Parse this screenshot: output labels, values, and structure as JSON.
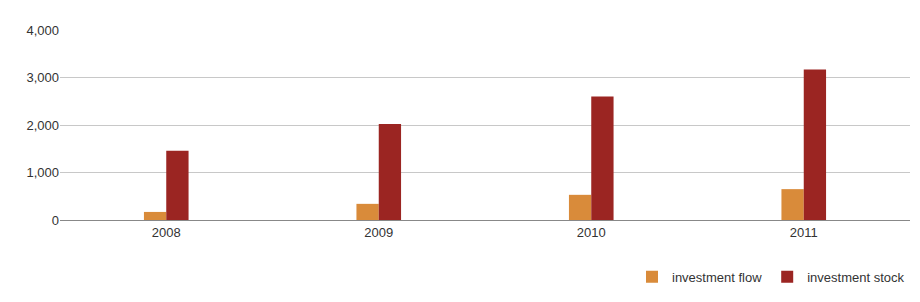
{
  "chart_data": {
    "type": "bar",
    "categories": [
      "2008",
      "2009",
      "2010",
      "2011"
    ],
    "series": [
      {
        "name": "investment flow",
        "color": "#d98b3a",
        "values": [
          170,
          340,
          530,
          650
        ]
      },
      {
        "name": "investment stock",
        "color": "#9b2522",
        "values": [
          1460,
          2020,
          2600,
          3170
        ]
      }
    ],
    "ylim": [
      0,
      4000
    ],
    "yticks": [
      0,
      {
        "value": 1000,
        "label": "1,000"
      },
      {
        "value": 2000,
        "label": "2,000"
      },
      {
        "value": 3000,
        "label": "3,000"
      },
      {
        "value": 4000,
        "label": "4,000"
      }
    ],
    "grid": true,
    "legend": "bottom right"
  }
}
